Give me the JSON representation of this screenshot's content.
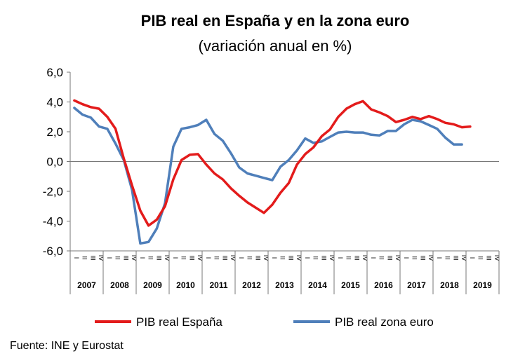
{
  "chart_data": {
    "type": "line",
    "title": "PIB real en España y en la zona euro",
    "subtitle": "(variación anual en %)",
    "xlabel": "",
    "ylabel": "",
    "ylim": [
      -6,
      6
    ],
    "yticks": [
      "6,0",
      "4,0",
      "2,0",
      "0,0",
      "-2,0",
      "-4,0",
      "-6,0"
    ],
    "quarter_labels": [
      "I",
      "II",
      "III",
      "IV"
    ],
    "years": [
      "2007",
      "2008",
      "2009",
      "2010",
      "2011",
      "2012",
      "2013",
      "2014",
      "2015",
      "2016",
      "2017",
      "2018",
      "2019"
    ],
    "grid": false,
    "legend_position": "bottom",
    "series": [
      {
        "name": "PIB real España",
        "color": "#e31b1b",
        "values": [
          4.1,
          3.85,
          3.65,
          3.55,
          3.0,
          2.2,
          0.2,
          -1.6,
          -3.3,
          -4.3,
          -3.9,
          -3.0,
          -1.2,
          0.1,
          0.45,
          0.5,
          -0.2,
          -0.8,
          -1.2,
          -1.8,
          -2.3,
          -2.75,
          -3.1,
          -3.45,
          -2.9,
          -2.1,
          -1.45,
          -0.2,
          0.5,
          0.95,
          1.7,
          2.15,
          3.0,
          3.55,
          3.85,
          4.05,
          3.5,
          3.3,
          3.05,
          2.65,
          2.8,
          3.0,
          2.85,
          3.05,
          2.85,
          2.6,
          2.5,
          2.3,
          2.35
        ]
      },
      {
        "name": "PIB real zona euro",
        "color": "#4f7fba",
        "values": [
          3.6,
          3.15,
          2.95,
          2.35,
          2.2,
          1.2,
          0.1,
          -1.9,
          -5.5,
          -5.4,
          -4.5,
          -2.8,
          1.0,
          2.2,
          2.3,
          2.45,
          2.8,
          1.85,
          1.4,
          0.55,
          -0.4,
          -0.8,
          -0.95,
          -1.1,
          -1.25,
          -0.35,
          0.1,
          0.75,
          1.55,
          1.25,
          1.35,
          1.65,
          1.95,
          2.0,
          1.95,
          1.95,
          1.8,
          1.75,
          2.05,
          2.05,
          2.5,
          2.8,
          2.7,
          2.45,
          2.2,
          1.6,
          1.15,
          1.15
        ]
      }
    ]
  },
  "source": "Fuente: INE y Eurostat"
}
